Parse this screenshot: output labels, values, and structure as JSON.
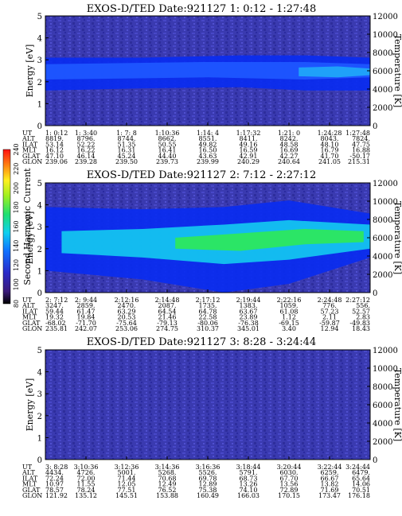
{
  "chart_data": [
    {
      "type": "heatmap",
      "title": "EXOS-D/TED   Date:921127   1: 0:12 - 1:27:48",
      "ylabel": "Energy [eV]",
      "ylabel_right": "Temperature [K]",
      "ylim": [
        0,
        5
      ],
      "ylim_right": [
        0,
        12000
      ],
      "y_ticks": [
        "0",
        "1",
        "2",
        "3",
        "4",
        "5"
      ],
      "y_ticks_right": [
        "0",
        "2000",
        "4000",
        "6000",
        "8000",
        "10000",
        "12000"
      ],
      "ephemeris": {
        "labels": [
          "UT",
          "ALT",
          "ILAT",
          "MLT",
          "GLAT",
          "GLON"
        ],
        "columns": [
          [
            "1: 0:12",
            "8819.",
            "53.14",
            "16.12",
            "47.10",
            "239.06"
          ],
          [
            "1: 3:40",
            "8796.",
            "52.22",
            "16.22",
            "46.14",
            "239.28"
          ],
          [
            "1: 7: 8",
            "8744.",
            "51.35",
            "16.31",
            "45.24",
            "239.50"
          ],
          [
            "1:10:36",
            "8662.",
            "50.55",
            "16.41",
            "44.40",
            "239.73"
          ],
          [
            "1:14: 4",
            "8551.",
            "49.82",
            "16.50",
            "43.63",
            "239.99"
          ],
          [
            "1:17:32",
            "8411.",
            "49.16",
            "16.59",
            "42.91",
            "240.29"
          ],
          [
            "1:21: 0",
            "8242.",
            "48.58",
            "16.69",
            "42.27",
            "240.64"
          ],
          [
            "1:24:28",
            "8043.",
            "48.10",
            "16.79",
            "41.70",
            "241.05"
          ],
          [
            "1:27:48",
            "7824.",
            "47.75",
            "16.88",
            "-50.17",
            "215.31"
          ]
        ]
      }
    },
    {
      "type": "heatmap",
      "title": "EXOS-D/TED   Date:921127   2: 7:12 - 2:27:12",
      "ylabel": "Energy [eV]",
      "ylabel_right": "Temperature [K]",
      "ylim": [
        0,
        5
      ],
      "ylim_right": [
        0,
        12000
      ],
      "y_ticks": [
        "0",
        "1",
        "2",
        "3",
        "4",
        "5"
      ],
      "y_ticks_right": [
        "0",
        "2000",
        "4000",
        "6000",
        "8000",
        "10000",
        "12000"
      ],
      "ephemeris": {
        "labels": [
          "UT",
          "ALT",
          "ILAT",
          "MLT",
          "GLAT",
          "GLON"
        ],
        "columns": [
          [
            "2: 7:12",
            "3247.",
            "59.44",
            "19.32",
            "-68.02",
            "235.81"
          ],
          [
            "2: 9:44",
            "2859.",
            "61.47",
            "19.84",
            "-71.70",
            "242.07"
          ],
          [
            "2:12:16",
            "2470.",
            "63.29",
            "20.53",
            "-75.64",
            "253.06"
          ],
          [
            "2:14:48",
            "2087.",
            "64.54",
            "21.46",
            "-79.13",
            "274.75"
          ],
          [
            "2:17:12",
            "1735.",
            "64.78",
            "22.58",
            "-80.06",
            "310.37"
          ],
          [
            "2:19:44",
            "1383.",
            "63.67",
            "23.89",
            "-76.38",
            "345.01"
          ],
          [
            "2:22:16",
            "1059.",
            "61.08",
            "1.12",
            "-69.15",
            "3.40"
          ],
          [
            "2:24:48",
            "776.",
            "57.23",
            "2.11",
            "-59.87",
            "12.94"
          ],
          [
            "2:27:12",
            "556.",
            "52.57",
            "2.83",
            "-49.83",
            "18.43"
          ]
        ]
      },
      "colorbar": {
        "label": "Second Harmonic Current",
        "ticks": [
          "80",
          "100",
          "120",
          "140",
          "160",
          "180",
          "200",
          "220",
          "240"
        ],
        "range": [
          80,
          240
        ]
      }
    },
    {
      "type": "heatmap",
      "title": "EXOS-D/TED   Date:921127   3: 8:28 - 3:24:44",
      "ylabel": "Energy [eV]",
      "ylabel_right": "Temperature [K]",
      "ylim": [
        0,
        5
      ],
      "ylim_right": [
        0,
        12000
      ],
      "y_ticks": [
        "0",
        "1",
        "2",
        "3",
        "4",
        "5"
      ],
      "y_ticks_right": [
        "0",
        "2000",
        "4000",
        "6000",
        "8000",
        "10000",
        "12000"
      ],
      "ephemeris": {
        "labels": [
          "UT",
          "ALT",
          "ILAT",
          "MLT",
          "GLAT",
          "GLON"
        ],
        "columns": [
          [
            "3: 8:28",
            "4434.",
            "72.24",
            "10.97",
            "78.57",
            "121.92"
          ],
          [
            "3:10:36",
            "4726.",
            "72.00",
            "11.55",
            "78.24",
            "135.12"
          ],
          [
            "3:12:36",
            "5001.",
            "71.44",
            "12.05",
            "77.51",
            "145.51"
          ],
          [
            "3:14:36",
            "5268.",
            "70.68",
            "12.49",
            "76.52",
            "153.88"
          ],
          [
            "3:16:36",
            "5526.",
            "69.78",
            "12.89",
            "75.38",
            "160.49"
          ],
          [
            "3:18:44",
            "5791.",
            "68.73",
            "13.26",
            "74.10",
            "166.03"
          ],
          [
            "3:20:44",
            "6030.",
            "67.70",
            "13.56",
            "72.89",
            "170.15"
          ],
          [
            "3:22:44",
            "6259.",
            "66.67",
            "13.82",
            "71.69",
            "173.47"
          ],
          [
            "3:24:44",
            "6479.",
            "65.64",
            "14.06",
            "70.51",
            "176.18"
          ]
        ]
      }
    }
  ],
  "colors": {
    "background_noise": "#3b3bb5",
    "band_blue": "#0a2cf0",
    "band_cyan": "#14c8f0",
    "band_green": "#2ee85a"
  }
}
